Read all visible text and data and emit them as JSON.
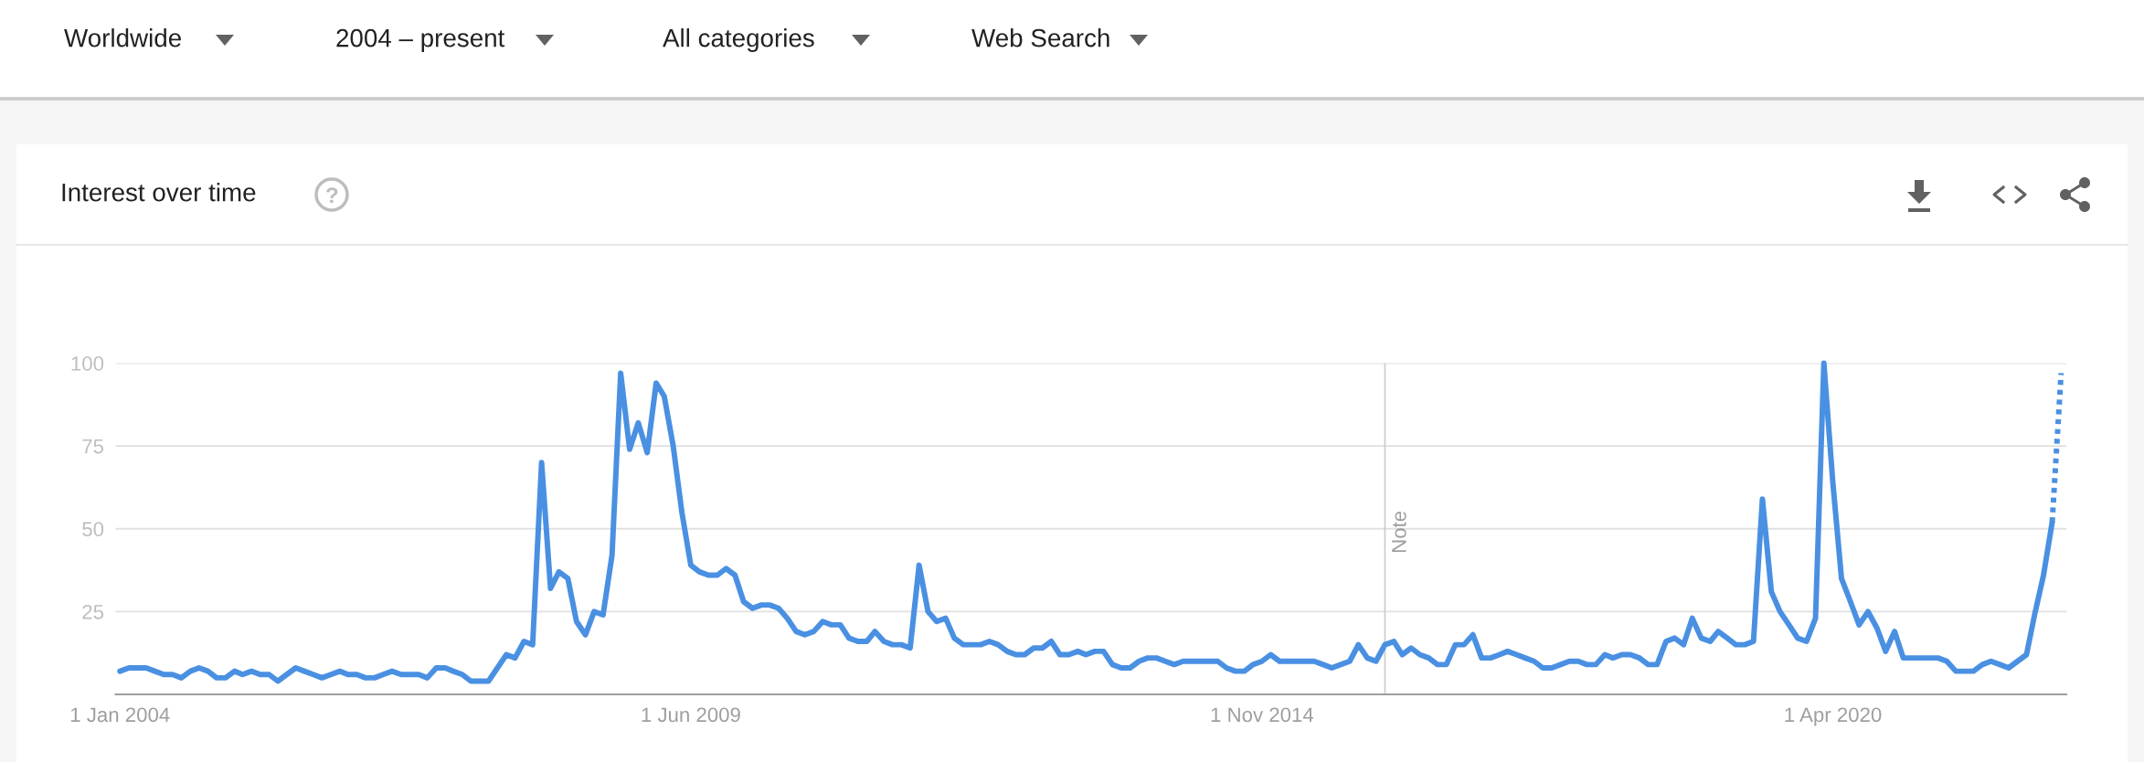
{
  "chart_data": {
    "type": "line",
    "title": "Interest over time",
    "annotations": [
      "Worldwide",
      "2004 – present",
      "All categories",
      "Web Search"
    ],
    "x": [
      "2004-01",
      "2004-02",
      "2004-03",
      "2004-04",
      "2004-05",
      "2004-06",
      "2004-07",
      "2004-08",
      "2004-09",
      "2004-10",
      "2004-11",
      "2004-12",
      "2005-01",
      "2005-02",
      "2005-03",
      "2005-04",
      "2005-05",
      "2005-06",
      "2005-07",
      "2005-08",
      "2005-09",
      "2005-10",
      "2005-11",
      "2005-12",
      "2006-01",
      "2006-02",
      "2006-03",
      "2006-04",
      "2006-05",
      "2006-06",
      "2006-07",
      "2006-08",
      "2006-09",
      "2006-10",
      "2006-11",
      "2006-12",
      "2007-01",
      "2007-02",
      "2007-03",
      "2007-04",
      "2007-05",
      "2007-06",
      "2007-07",
      "2007-08",
      "2007-09",
      "2007-10",
      "2007-11",
      "2007-12",
      "2008-01",
      "2008-02",
      "2008-03",
      "2008-04",
      "2008-05",
      "2008-06",
      "2008-07",
      "2008-08",
      "2008-09",
      "2008-10",
      "2008-11",
      "2008-12",
      "2009-01",
      "2009-02",
      "2009-03",
      "2009-04",
      "2009-05",
      "2009-06",
      "2009-07",
      "2009-08",
      "2009-09",
      "2009-10",
      "2009-11",
      "2009-12",
      "2010-01",
      "2010-02",
      "2010-03",
      "2010-04",
      "2010-05",
      "2010-06",
      "2010-07",
      "2010-08",
      "2010-09",
      "2010-10",
      "2010-11",
      "2010-12",
      "2011-01",
      "2011-02",
      "2011-03",
      "2011-04",
      "2011-05",
      "2011-06",
      "2011-07",
      "2011-08",
      "2011-09",
      "2011-10",
      "2011-11",
      "2011-12",
      "2012-01",
      "2012-02",
      "2012-03",
      "2012-04",
      "2012-05",
      "2012-06",
      "2012-07",
      "2012-08",
      "2012-09",
      "2012-10",
      "2012-11",
      "2012-12",
      "2013-01",
      "2013-02",
      "2013-03",
      "2013-04",
      "2013-05",
      "2013-06",
      "2013-07",
      "2013-08",
      "2013-09",
      "2013-10",
      "2013-11",
      "2013-12",
      "2014-01",
      "2014-02",
      "2014-03",
      "2014-04",
      "2014-05",
      "2014-06",
      "2014-07",
      "2014-08",
      "2014-09",
      "2014-10",
      "2014-11",
      "2014-12",
      "2015-01",
      "2015-02",
      "2015-03",
      "2015-04",
      "2015-05",
      "2015-06",
      "2015-07",
      "2015-08",
      "2015-09",
      "2015-10",
      "2015-11",
      "2015-12",
      "2016-01",
      "2016-02",
      "2016-03",
      "2016-04",
      "2016-05",
      "2016-06",
      "2016-07",
      "2016-08",
      "2016-09",
      "2016-10",
      "2016-11",
      "2016-12",
      "2017-01",
      "2017-02",
      "2017-03",
      "2017-04",
      "2017-05",
      "2017-06",
      "2017-07",
      "2017-08",
      "2017-09",
      "2017-10",
      "2017-11",
      "2017-12",
      "2018-01",
      "2018-02",
      "2018-03",
      "2018-04",
      "2018-05",
      "2018-06",
      "2018-07",
      "2018-08",
      "2018-09",
      "2018-10",
      "2018-11",
      "2018-12",
      "2019-01",
      "2019-02",
      "2019-03",
      "2019-04",
      "2019-05",
      "2019-06",
      "2019-07",
      "2019-08",
      "2019-09",
      "2019-10",
      "2019-11",
      "2019-12",
      "2020-01",
      "2020-02",
      "2020-03",
      "2020-04",
      "2020-05",
      "2020-06",
      "2020-07",
      "2020-08",
      "2020-09",
      "2020-10",
      "2020-11",
      "2020-12",
      "2021-01",
      "2021-02",
      "2021-03",
      "2021-04",
      "2021-05",
      "2021-06",
      "2021-07",
      "2021-08",
      "2021-09",
      "2021-10",
      "2021-11",
      "2021-12",
      "2022-01",
      "2022-02",
      "2022-03",
      "2022-04",
      "2022-05"
    ],
    "series": [
      {
        "color": "#4a90e2",
        "line_style": "solid",
        "values": [
          7,
          8,
          8,
          8,
          7,
          6,
          6,
          5,
          7,
          8,
          7,
          5,
          5,
          7,
          6,
          7,
          6,
          6,
          4,
          6,
          8,
          7,
          6,
          5,
          6,
          7,
          6,
          6,
          5,
          5,
          6,
          7,
          6,
          6,
          6,
          5,
          8,
          8,
          7,
          6,
          4,
          4,
          4,
          8,
          12,
          11,
          16,
          15,
          70,
          32,
          37,
          35,
          22,
          18,
          25,
          24,
          42,
          97,
          74,
          82,
          73,
          94,
          90,
          75,
          55,
          39,
          37,
          36,
          36,
          38,
          36,
          28,
          26,
          27,
          27,
          26,
          23,
          19,
          18,
          19,
          22,
          21,
          21,
          17,
          16,
          16,
          19,
          16,
          15,
          15,
          14,
          39,
          25,
          22,
          23,
          17,
          15,
          15,
          15,
          16,
          15,
          13,
          12,
          12,
          14,
          14,
          16,
          12,
          12,
          13,
          12,
          13,
          13,
          9,
          8,
          8,
          10,
          11,
          11,
          10,
          9,
          10,
          10,
          10,
          10,
          10,
          8,
          7,
          7,
          9,
          10,
          12,
          10,
          10,
          10,
          10,
          10,
          9,
          8,
          9,
          10,
          15,
          11,
          10,
          15,
          16,
          12,
          14,
          12,
          11,
          9,
          9,
          15,
          15,
          18,
          11,
          11,
          12,
          13,
          12,
          11,
          10,
          8,
          8,
          9,
          10,
          10,
          9,
          9,
          12,
          11,
          12,
          12,
          11,
          9,
          9,
          16,
          17,
          15,
          23,
          17,
          16,
          19,
          17,
          15,
          15,
          16,
          59,
          31,
          25,
          21,
          17,
          16,
          23,
          100,
          64,
          35,
          28,
          21,
          25,
          20,
          13,
          19,
          11,
          11,
          11,
          11,
          11,
          10,
          7,
          7,
          7,
          9,
          10,
          9,
          8,
          10,
          12,
          24,
          36,
          52
        ]
      },
      {
        "color": "#4a90e2",
        "line_style": "dotted",
        "x": [
          "2022-05",
          "2022-06"
        ],
        "values": [
          52,
          97
        ]
      }
    ],
    "xlim": [
      "2003-12-17",
      "2022-06-19"
    ],
    "xticks": [
      {
        "value": "2004-01-01",
        "label": "1 Jan 2004"
      },
      {
        "value": "2009-06-01",
        "label": "1 Jun 2009"
      },
      {
        "value": "2014-11-01",
        "label": "1 Nov 2014"
      },
      {
        "value": "2020-04-01",
        "label": "1 Apr 2020"
      }
    ],
    "ylim": [
      0,
      100
    ],
    "yticks": [
      25,
      50,
      75,
      100
    ],
    "grid": "y",
    "ref_lines": [
      {
        "axis": "x",
        "value": "2016-01-01",
        "label": "Note",
        "color": "#cccccc"
      }
    ]
  }
}
